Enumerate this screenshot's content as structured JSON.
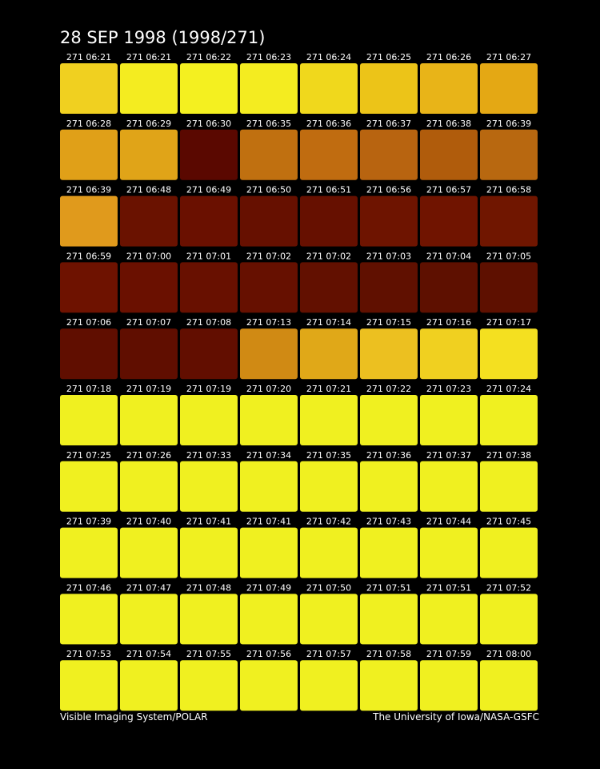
{
  "header": {
    "title": "28 SEP 1998  (1998/271)"
  },
  "frames": [
    {
      "label": "271 06:21",
      "color": "#f0d020"
    },
    {
      "label": "271 06:21",
      "color": "#f4ec20"
    },
    {
      "label": "271 06:22",
      "color": "#f4f020"
    },
    {
      "label": "271 06:23",
      "color": "#f4ec20"
    },
    {
      "label": "271 06:24",
      "color": "#f0d81c"
    },
    {
      "label": "271 06:25",
      "color": "#ecc418"
    },
    {
      "label": "271 06:26",
      "color": "#e8b418"
    },
    {
      "label": "271 06:27",
      "color": "#e4a814"
    },
    {
      "label": "271 06:28",
      "color": "#e0a018"
    },
    {
      "label": "271 06:29",
      "color": "#e0a418"
    },
    {
      "label": "271 06:30",
      "color": "#5a0800"
    },
    {
      "label": "271 06:35",
      "color": "#c07010"
    },
    {
      "label": "271 06:36",
      "color": "#c06c10"
    },
    {
      "label": "271 06:37",
      "color": "#b86410"
    },
    {
      "label": "271 06:38",
      "color": "#b05c0c"
    },
    {
      "label": "271 06:39",
      "color": "#b86810"
    },
    {
      "label": "271 06:39",
      "color": "#e09a1c"
    },
    {
      "label": "271 06:48",
      "color": "#6a1200"
    },
    {
      "label": "271 06:49",
      "color": "#6a1000"
    },
    {
      "label": "271 06:50",
      "color": "#661000"
    },
    {
      "label": "271 06:51",
      "color": "#661000"
    },
    {
      "label": "271 06:56",
      "color": "#6e1400"
    },
    {
      "label": "271 06:57",
      "color": "#701400"
    },
    {
      "label": "271 06:58",
      "color": "#701600"
    },
    {
      "label": "271 06:59",
      "color": "#6e1200"
    },
    {
      "label": "271 07:00",
      "color": "#6a1000"
    },
    {
      "label": "271 07:01",
      "color": "#681000"
    },
    {
      "label": "271 07:02",
      "color": "#661000"
    },
    {
      "label": "271 07:02",
      "color": "#621000"
    },
    {
      "label": "271 07:03",
      "color": "#601000"
    },
    {
      "label": "271 07:04",
      "color": "#5e1000"
    },
    {
      "label": "271 07:05",
      "color": "#5e1000"
    },
    {
      "label": "271 07:06",
      "color": "#600e00"
    },
    {
      "label": "271 07:07",
      "color": "#600e00"
    },
    {
      "label": "271 07:08",
      "color": "#620e00"
    },
    {
      "label": "271 07:13",
      "color": "#d08a14"
    },
    {
      "label": "271 07:14",
      "color": "#e0a818"
    },
    {
      "label": "271 07:15",
      "color": "#ecc020"
    },
    {
      "label": "271 07:16",
      "color": "#f0d020"
    },
    {
      "label": "271 07:17",
      "color": "#f4e020"
    },
    {
      "label": "271 07:18",
      "color": "#f0f020"
    },
    {
      "label": "271 07:19",
      "color": "#f0f020"
    },
    {
      "label": "271 07:19",
      "color": "#f0f020"
    },
    {
      "label": "271 07:20",
      "color": "#f0f020"
    },
    {
      "label": "271 07:21",
      "color": "#f0f020"
    },
    {
      "label": "271 07:22",
      "color": "#f0f020"
    },
    {
      "label": "271 07:23",
      "color": "#f0f020"
    },
    {
      "label": "271 07:24",
      "color": "#f0f020"
    },
    {
      "label": "271 07:25",
      "color": "#f0f020"
    },
    {
      "label": "271 07:26",
      "color": "#f0f020"
    },
    {
      "label": "271 07:33",
      "color": "#f0f020"
    },
    {
      "label": "271 07:34",
      "color": "#f0f020"
    },
    {
      "label": "271 07:35",
      "color": "#f0f020"
    },
    {
      "label": "271 07:36",
      "color": "#f0f020"
    },
    {
      "label": "271 07:37",
      "color": "#f0f020"
    },
    {
      "label": "271 07:38",
      "color": "#f0f020"
    },
    {
      "label": "271 07:39",
      "color": "#f0f020"
    },
    {
      "label": "271 07:40",
      "color": "#f0f020"
    },
    {
      "label": "271 07:41",
      "color": "#f0f020"
    },
    {
      "label": "271 07:41",
      "color": "#f0f020"
    },
    {
      "label": "271 07:42",
      "color": "#f0f020"
    },
    {
      "label": "271 07:43",
      "color": "#f0f020"
    },
    {
      "label": "271 07:44",
      "color": "#f0f020"
    },
    {
      "label": "271 07:45",
      "color": "#f0f020"
    },
    {
      "label": "271 07:46",
      "color": "#f0f020"
    },
    {
      "label": "271 07:47",
      "color": "#f0f020"
    },
    {
      "label": "271 07:48",
      "color": "#f0f020"
    },
    {
      "label": "271 07:49",
      "color": "#f0f020"
    },
    {
      "label": "271 07:50",
      "color": "#f0f020"
    },
    {
      "label": "271 07:51",
      "color": "#f0f020"
    },
    {
      "label": "271 07:51",
      "color": "#f0f020"
    },
    {
      "label": "271 07:52",
      "color": "#f0f020"
    },
    {
      "label": "271 07:53",
      "color": "#f0f020"
    },
    {
      "label": "271 07:54",
      "color": "#f0f020"
    },
    {
      "label": "271 07:55",
      "color": "#f0f020"
    },
    {
      "label": "271 07:56",
      "color": "#f0f020"
    },
    {
      "label": "271 07:57",
      "color": "#f0f020"
    },
    {
      "label": "271 07:58",
      "color": "#f0f020"
    },
    {
      "label": "271 07:59",
      "color": "#f0f020"
    },
    {
      "label": "271 08:00",
      "color": "#f0f020"
    }
  ],
  "footer": {
    "left": "Visible Imaging System/POLAR",
    "right": "The University of Iowa/NASA-GSFC"
  }
}
